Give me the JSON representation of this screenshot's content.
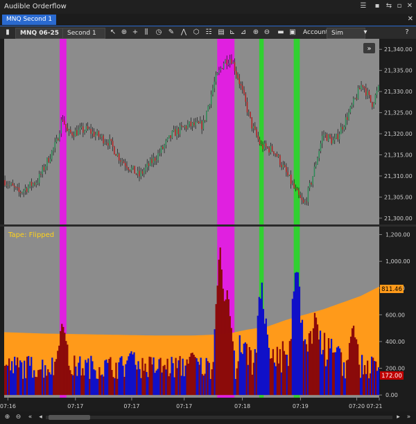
{
  "window": {
    "title": "Audible Orderflow",
    "tab": "MNQ Second 1"
  },
  "toolbar": {
    "instrument": "MNQ 06-25",
    "interval": "Second 1",
    "account_label": "Account:",
    "account_value": "Sim Default",
    "help": "?"
  },
  "price_panel": {
    "ticks": [
      "21,340.00",
      "21,335.00",
      "21,330.00",
      "21,325.00",
      "21,320.00",
      "21,315.00",
      "21,310.00",
      "21,305.00",
      "21,300.00"
    ],
    "tick_values": [
      21340,
      21335,
      21330,
      21325,
      21320,
      21315,
      21310,
      21305,
      21300
    ],
    "ymin": 21298.5,
    "ymax": 21342.5,
    "bars_up_color": "#2e8b57",
    "bars_down_color": "#b22222"
  },
  "tape_panel": {
    "label": "Tape: Flipped",
    "ticks": [
      "1,200.00",
      "1,000.00",
      "800.00",
      "600.00",
      "400.00",
      "200.00",
      "0.00"
    ],
    "tick_values": [
      1200,
      1000,
      800,
      600,
      400,
      200,
      0
    ],
    "ymin": -20,
    "ymax": 1260,
    "badge_orange": "811.46",
    "badge_red": "172.00",
    "orange_color": "#ff9a1a",
    "buy_color": "#1010c8",
    "sell_color": "#8b0a0a"
  },
  "time_axis": [
    "07:16",
    "07:17",
    "07:17",
    "07:17",
    "07:18",
    "07:19",
    "07:20",
    "07:21"
  ],
  "highlights": [
    {
      "color": "#e020e0",
      "from": 0.148,
      "to": 0.166
    },
    {
      "color": "#e020e0",
      "from": 0.568,
      "to": 0.614
    },
    {
      "color": "#30d030",
      "from": 0.68,
      "to": 0.692
    },
    {
      "color": "#30d030",
      "from": 0.772,
      "to": 0.788
    }
  ]
}
